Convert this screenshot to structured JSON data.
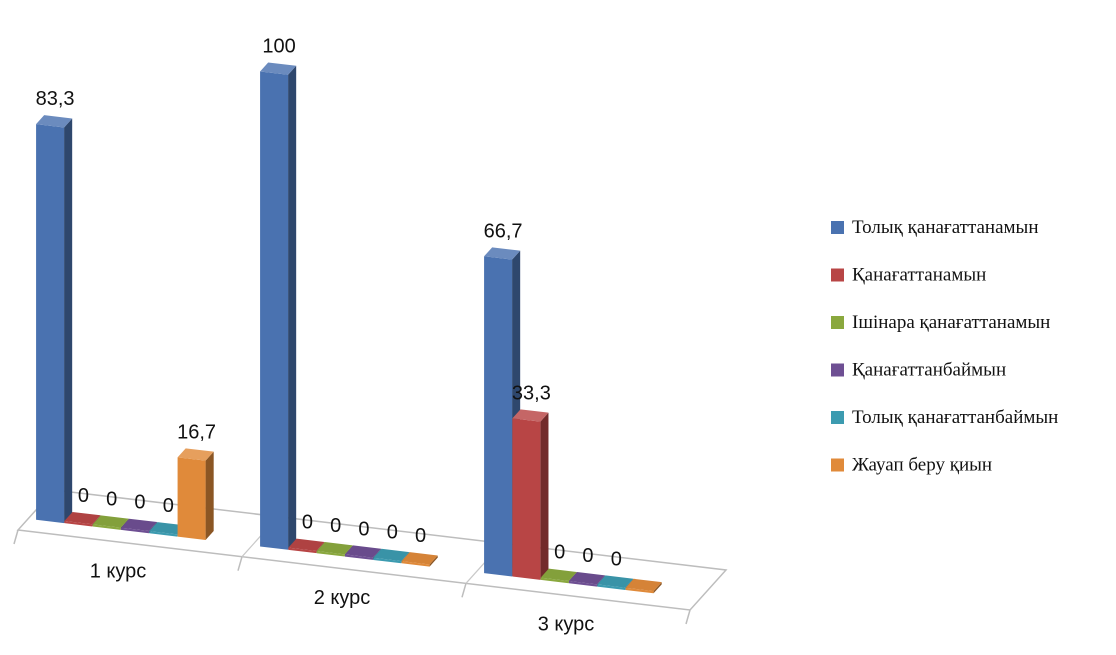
{
  "chart_data": {
    "type": "bar",
    "title": "",
    "xlabel": "",
    "ylabel": "",
    "ylim": [
      0,
      100
    ],
    "legend_position": "right",
    "categories": [
      "1 курс",
      "2 курс",
      "3 курс"
    ],
    "series": [
      {
        "name": "Толық қанағаттанамын",
        "color": "#4a72b0",
        "values": [
          83.3,
          100,
          66.7
        ],
        "labels": [
          "83,3",
          "100",
          "66,7"
        ]
      },
      {
        "name": "Қанағаттанамын",
        "color": "#b84545",
        "values": [
          0,
          0,
          33.3
        ],
        "labels": [
          "0",
          "0",
          "33,3"
        ]
      },
      {
        "name": "Ішінара қанағаттанамын",
        "color": "#8aa83e",
        "values": [
          0,
          0,
          0
        ],
        "labels": [
          "0",
          "0",
          "0"
        ]
      },
      {
        "name": "Қанағаттанбаймын",
        "color": "#6e4f93",
        "values": [
          0,
          0,
          0
        ],
        "labels": [
          "0",
          "0",
          "0"
        ]
      },
      {
        "name": "Толық қанағаттанбаймын",
        "color": "#3c9bb0",
        "values": [
          0,
          0,
          0
        ],
        "labels": [
          "0",
          "0",
          "0"
        ]
      },
      {
        "name": "Жауап беру қиын",
        "color": "#e08a3a",
        "values": [
          16.7,
          0,
          0
        ],
        "labels": [
          "16,7",
          "0",
          ""
        ]
      }
    ]
  }
}
